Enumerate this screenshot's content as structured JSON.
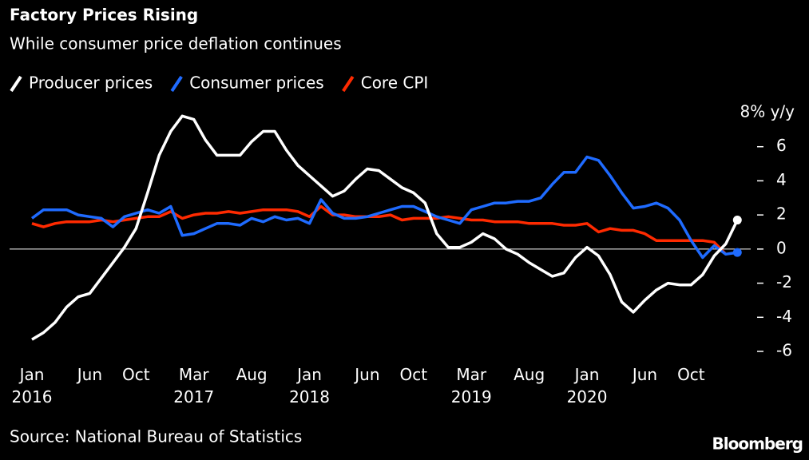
{
  "chart_data": {
    "type": "line",
    "title": "Factory Prices Rising",
    "subtitle": "While consumer price deflation continues",
    "source": "Source: National Bureau of Statistics",
    "brand": "Bloomberg",
    "categories": [
      "Jan 2016",
      null,
      null,
      null,
      null,
      "Jun",
      null,
      null,
      null,
      "Oct",
      null,
      null,
      null,
      null,
      "Mar 2017",
      null,
      null,
      null,
      null,
      "Aug",
      null,
      null,
      null,
      null,
      "Jan 2018",
      null,
      null,
      null,
      null,
      "Jun",
      null,
      null,
      null,
      "Oct",
      null,
      null,
      null,
      null,
      "Mar 2019",
      null,
      null,
      null,
      null,
      "Aug",
      null,
      null,
      null,
      null,
      "Jan 2020",
      null,
      null,
      null,
      null,
      "Jun",
      null,
      null,
      null,
      "Oct",
      null,
      null,
      null,
      null
    ],
    "series": [
      {
        "name": "Producer prices",
        "color": "#ffffff",
        "end_dot": true,
        "values": [
          -5.3,
          -4.9,
          -4.3,
          -3.4,
          -2.8,
          -2.6,
          -1.7,
          -0.8,
          0.1,
          1.2,
          3.3,
          5.5,
          6.9,
          7.8,
          7.6,
          6.4,
          5.5,
          5.5,
          5.5,
          6.3,
          6.9,
          6.9,
          5.8,
          4.9,
          4.3,
          3.7,
          3.1,
          3.4,
          4.1,
          4.7,
          4.6,
          4.1,
          3.6,
          3.3,
          2.7,
          0.9,
          0.1,
          0.1,
          0.4,
          0.9,
          0.6,
          0.0,
          -0.3,
          -0.8,
          -1.2,
          -1.6,
          -1.4,
          -0.5,
          0.1,
          -0.4,
          -1.5,
          -3.1,
          -3.7,
          -3.0,
          -2.4,
          -2.0,
          -2.1,
          -2.1,
          -1.5,
          -0.4,
          0.3,
          1.7
        ]
      },
      {
        "name": "Consumer prices",
        "color": "#1f6bff",
        "end_dot": true,
        "values": [
          1.8,
          2.3,
          2.3,
          2.3,
          2.0,
          1.9,
          1.8,
          1.3,
          1.9,
          2.1,
          2.3,
          2.1,
          2.5,
          0.8,
          0.9,
          1.2,
          1.5,
          1.5,
          1.4,
          1.8,
          1.6,
          1.9,
          1.7,
          1.8,
          1.5,
          2.9,
          2.1,
          1.8,
          1.8,
          1.9,
          2.1,
          2.3,
          2.5,
          2.5,
          2.2,
          1.9,
          1.7,
          1.5,
          2.3,
          2.5,
          2.7,
          2.7,
          2.8,
          2.8,
          3.0,
          3.8,
          4.5,
          4.5,
          5.4,
          5.2,
          4.3,
          3.3,
          2.4,
          2.5,
          2.7,
          2.4,
          1.7,
          0.5,
          -0.5,
          0.2,
          -0.3,
          -0.2
        ]
      },
      {
        "name": "Core CPI",
        "color": "#ff2a00",
        "end_dot": false,
        "values": [
          1.5,
          1.3,
          1.5,
          1.6,
          1.6,
          1.6,
          1.7,
          1.6,
          1.7,
          1.8,
          1.9,
          1.9,
          2.2,
          1.8,
          2.0,
          2.1,
          2.1,
          2.2,
          2.1,
          2.2,
          2.3,
          2.3,
          2.3,
          2.2,
          1.9,
          2.5,
          2.0,
          2.0,
          1.9,
          1.9,
          1.9,
          2.0,
          1.7,
          1.8,
          1.8,
          1.8,
          1.9,
          1.8,
          1.7,
          1.7,
          1.6,
          1.6,
          1.6,
          1.5,
          1.5,
          1.5,
          1.4,
          1.4,
          1.5,
          1.0,
          1.2,
          1.1,
          1.1,
          0.9,
          0.5,
          0.5,
          0.5,
          0.5,
          0.5,
          0.4,
          -0.3,
          null
        ]
      }
    ],
    "ylim": [
      -6,
      8
    ],
    "yticks": [
      -6,
      -4,
      -2,
      0,
      2,
      4,
      6,
      {
        "value": 8,
        "label": "8% y/y"
      }
    ],
    "zero_line": true,
    "legend": "top-left"
  }
}
